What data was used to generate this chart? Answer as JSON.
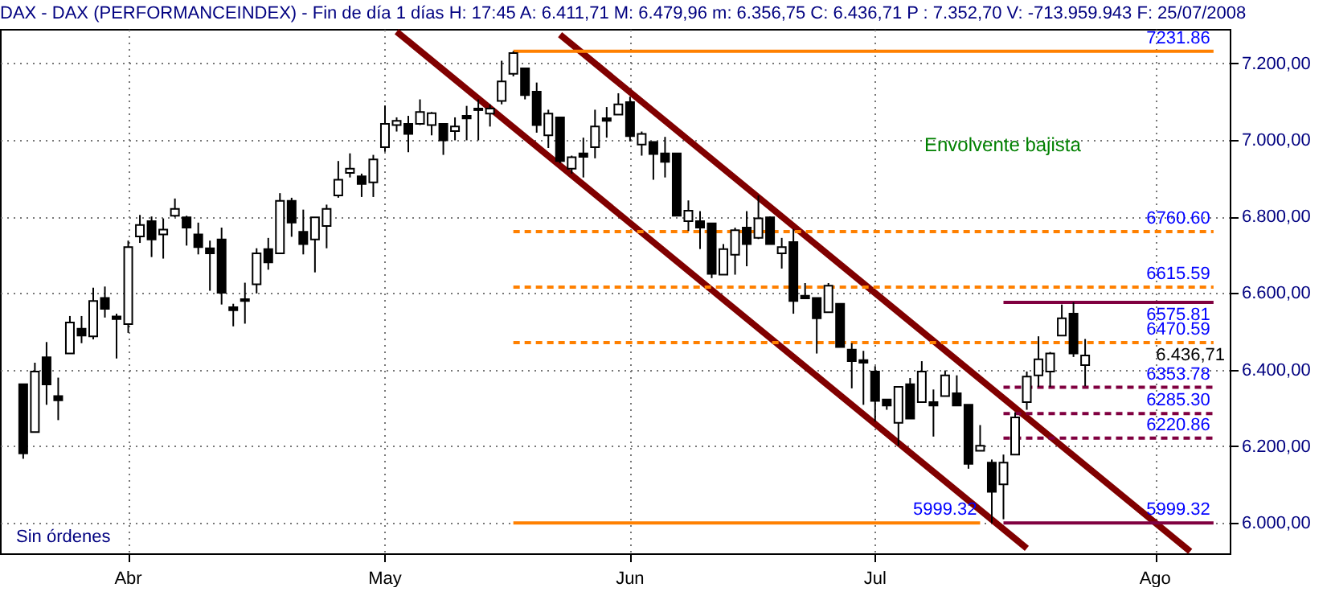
{
  "chart_data": {
    "type": "candlestick",
    "title": "DAX - DAX (PERFORMANCEINDEX) - Fin de día 1 días H: 17:45 A: 6.411,71 M: 6.479,96 m: 6.356,75 C: 6.436,71 P : 7.352,70 V: -713.959.943 F: 25/07/2008",
    "categories": [
      null,
      null,
      null,
      null,
      null,
      null,
      null,
      null,
      null,
      "Abr",
      null,
      null,
      null,
      null,
      null,
      null,
      null,
      null,
      null,
      null,
      null,
      null,
      null,
      null,
      null,
      null,
      null,
      null,
      null,
      null,
      null,
      "May",
      null,
      null,
      null,
      null,
      null,
      null,
      null,
      null,
      null,
      null,
      null,
      null,
      null,
      null,
      null,
      null,
      null,
      null,
      null,
      null,
      "Jun",
      null,
      null,
      null,
      null,
      null,
      null,
      null,
      null,
      null,
      null,
      null,
      null,
      null,
      null,
      null,
      null,
      null,
      null,
      null,
      null,
      "Jul",
      null,
      null,
      null,
      null,
      null,
      null,
      null,
      null,
      null,
      null,
      null,
      null,
      null,
      null,
      null,
      null,
      null,
      null,
      null,
      null,
      null,
      null,
      null,
      "Ago",
      null,
      null,
      null,
      null,
      null
    ],
    "ohlc": [
      [
        6362,
        6362,
        6167,
        6181
      ],
      [
        6237,
        6418,
        6237,
        6395
      ],
      [
        6432,
        6472,
        6308,
        6361
      ],
      [
        6331,
        6379,
        6268,
        6320
      ],
      [
        6442,
        6540,
        6442,
        6523
      ],
      [
        6507,
        6540,
        6469,
        6489
      ],
      [
        6487,
        6614,
        6479,
        6579
      ],
      [
        6587,
        6617,
        6536,
        6559
      ],
      [
        6539,
        6546,
        6429,
        6532
      ],
      [
        6519,
        6737,
        6496,
        6720
      ],
      [
        6748,
        6804,
        6731,
        6778
      ],
      [
        6788,
        6800,
        6694,
        6740
      ],
      [
        6753,
        6795,
        6690,
        6766
      ],
      [
        6802,
        6847,
        6798,
        6820
      ],
      [
        6798,
        6802,
        6724,
        6771
      ],
      [
        6753,
        6784,
        6701,
        6720
      ],
      [
        6717,
        6737,
        6606,
        6704
      ],
      [
        6740,
        6771,
        6570,
        6601
      ],
      [
        6563,
        6572,
        6513,
        6555
      ],
      [
        6584,
        6627,
        6520,
        6579
      ],
      [
        6623,
        6717,
        6599,
        6704
      ],
      [
        6715,
        6744,
        6661,
        6680
      ],
      [
        6704,
        6861,
        6704,
        6841
      ],
      [
        6841,
        6849,
        6747,
        6784
      ],
      [
        6760,
        6818,
        6701,
        6728
      ],
      [
        6740,
        6798,
        6654,
        6798
      ],
      [
        6775,
        6831,
        6717,
        6820
      ],
      [
        6855,
        6945,
        6849,
        6896
      ],
      [
        6914,
        6965,
        6902,
        6925
      ],
      [
        6905,
        6912,
        6851,
        6885
      ],
      [
        6889,
        6961,
        6851,
        6949
      ],
      [
        6981,
        7090,
        6969,
        7042
      ],
      [
        7039,
        7059,
        7022,
        7050
      ],
      [
        7042,
        7063,
        6968,
        7016
      ],
      [
        7042,
        7106,
        7039,
        7073
      ],
      [
        7039,
        7073,
        7012,
        7070
      ],
      [
        7042,
        7042,
        6961,
        6999
      ],
      [
        7023,
        7059,
        6999,
        7035
      ],
      [
        7063,
        7089,
        6999,
        7056
      ],
      [
        7082,
        7106,
        6999,
        7078
      ],
      [
        7069,
        7093,
        7035,
        7082
      ],
      [
        7102,
        7207,
        7093,
        7153
      ],
      [
        7173,
        7231.86,
        7166,
        7227
      ],
      [
        7187,
        7187,
        7106,
        7117
      ],
      [
        7126,
        7150,
        7019,
        7039
      ],
      [
        7012,
        7079,
        6979,
        7069
      ],
      [
        7059,
        7059,
        6939,
        6945
      ],
      [
        6925,
        6959,
        6912,
        6955
      ],
      [
        6965,
        7006,
        6902,
        6956
      ],
      [
        6981,
        7079,
        6952,
        7035
      ],
      [
        7057,
        7086,
        7006,
        7050
      ],
      [
        7066,
        7122,
        7066,
        7093
      ],
      [
        7099,
        7113,
        6996,
        7010
      ],
      [
        6988,
        7022,
        6959,
        7016
      ],
      [
        6995,
        6995,
        6896,
        6963
      ],
      [
        6965,
        7008,
        6902,
        6943
      ],
      [
        6965,
        6965,
        6802,
        6802
      ],
      [
        6788,
        6842,
        6762,
        6815
      ],
      [
        6788,
        6814,
        6715,
        6771
      ],
      [
        6782,
        6782,
        6639,
        6650
      ],
      [
        6648,
        6728,
        6648,
        6715
      ],
      [
        6700,
        6771,
        6648,
        6764
      ],
      [
        6771,
        6814,
        6670,
        6728
      ],
      [
        6744,
        6855,
        6741,
        6795
      ],
      [
        6798,
        6800,
        6728,
        6728
      ],
      [
        6704,
        6744,
        6664,
        6720
      ],
      [
        6733,
        6767,
        6546,
        6579
      ],
      [
        6593,
        6626,
        6586,
        6586
      ],
      [
        6587,
        6587,
        6442,
        6534
      ],
      [
        6550,
        6626,
        6550,
        6619
      ],
      [
        6572,
        6572,
        6459,
        6459
      ],
      [
        6452,
        6469,
        6351,
        6422
      ],
      [
        6425,
        6449,
        6308,
        6418
      ],
      [
        6395,
        6409,
        6264,
        6318
      ],
      [
        6322,
        6322,
        6295,
        6306
      ],
      [
        6261,
        6355,
        6201,
        6355
      ],
      [
        6362,
        6378,
        6272,
        6272
      ],
      [
        6315,
        6422,
        6315,
        6395
      ],
      [
        6315,
        6348,
        6225,
        6306
      ],
      [
        6331,
        6398,
        6331,
        6385
      ],
      [
        6338,
        6385,
        6306,
        6306
      ],
      [
        6308,
        6308,
        6141,
        6154
      ],
      [
        6188,
        6255,
        6188,
        6201
      ],
      [
        6157,
        6165,
        5999.32,
        6081
      ],
      [
        6100,
        6178,
        6009,
        6157
      ],
      [
        6178,
        6288,
        6178,
        6275
      ],
      [
        6315,
        6395,
        6295,
        6382
      ],
      [
        6385,
        6487,
        6355,
        6427
      ],
      [
        6395,
        6446,
        6355,
        6442
      ],
      [
        6489,
        6570,
        6489,
        6534
      ],
      [
        6546,
        6575.81,
        6433,
        6442
      ],
      [
        6411.71,
        6479.96,
        6356.75,
        6436.71
      ],
      null,
      null,
      null,
      null,
      null,
      null,
      null,
      null,
      null,
      null,
      null
    ],
    "series": [
      {
        "type": "line",
        "color": "#800000",
        "line_style": "solid",
        "values": [
          null,
          null,
          null,
          null,
          null,
          null,
          null,
          null,
          null,
          null,
          null,
          null,
          null,
          null,
          null,
          null,
          null,
          null,
          null,
          null,
          null,
          null,
          null,
          null,
          null,
          null,
          null,
          null,
          null,
          null,
          null,
          null,
          7283,
          null,
          null,
          null,
          null,
          null,
          null,
          null,
          null,
          null,
          null,
          null,
          null,
          null,
          null,
          null,
          null,
          null,
          null,
          null,
          null,
          null,
          null,
          null,
          null,
          null,
          null,
          null,
          null,
          null,
          null,
          null,
          null,
          null,
          null,
          null,
          null,
          null,
          null,
          null,
          null,
          null,
          null,
          null,
          null,
          null,
          null,
          null,
          null,
          null,
          null,
          null,
          null,
          null,
          5933,
          null,
          null,
          null,
          null,
          null,
          null,
          null,
          null,
          null,
          null,
          null,
          null,
          null,
          null,
          null,
          null
        ]
      },
      {
        "type": "line",
        "color": "#800000",
        "line_style": "solid",
        "values": [
          null,
          null,
          null,
          null,
          null,
          null,
          null,
          null,
          null,
          null,
          null,
          null,
          null,
          null,
          null,
          null,
          null,
          null,
          null,
          null,
          null,
          null,
          null,
          null,
          null,
          null,
          null,
          null,
          null,
          null,
          null,
          null,
          null,
          null,
          null,
          null,
          null,
          null,
          null,
          null,
          null,
          null,
          null,
          null,
          null,
          null,
          7275,
          null,
          null,
          null,
          null,
          null,
          null,
          null,
          null,
          null,
          null,
          null,
          null,
          null,
          null,
          null,
          null,
          null,
          null,
          null,
          null,
          null,
          null,
          null,
          null,
          null,
          null,
          null,
          null,
          null,
          null,
          null,
          null,
          null,
          null,
          null,
          null,
          null,
          null,
          null,
          null,
          null,
          null,
          null,
          null,
          null,
          null,
          null,
          null,
          null,
          null,
          null,
          null,
          null,
          5925,
          null,
          null
        ]
      },
      {
        "type": "line",
        "name": "7231.86",
        "color": "#ff8000",
        "line_style": "solid",
        "values": [
          null,
          null,
          null,
          null,
          null,
          null,
          null,
          null,
          null,
          null,
          null,
          null,
          null,
          null,
          null,
          null,
          null,
          null,
          null,
          null,
          null,
          null,
          null,
          null,
          null,
          null,
          null,
          null,
          null,
          null,
          null,
          null,
          null,
          null,
          null,
          null,
          null,
          null,
          null,
          null,
          null,
          null,
          7231.86,
          null,
          null,
          null,
          null,
          null,
          null,
          null,
          null,
          null,
          null,
          null,
          null,
          null,
          null,
          null,
          null,
          null,
          null,
          null,
          null,
          null,
          null,
          null,
          null,
          null,
          null,
          null,
          null,
          null,
          null,
          null,
          null,
          null,
          null,
          null,
          null,
          null,
          null,
          null,
          null,
          null,
          null,
          null,
          null,
          null,
          null,
          null,
          null,
          null,
          null,
          null,
          null,
          null,
          null,
          null,
          null,
          null,
          null,
          null,
          7231.86
        ]
      },
      {
        "type": "line",
        "name": "6760.60",
        "color": "#ff8000",
        "line_style": "dashed",
        "values": [
          null,
          null,
          null,
          null,
          null,
          null,
          null,
          null,
          null,
          null,
          null,
          null,
          null,
          null,
          null,
          null,
          null,
          null,
          null,
          null,
          null,
          null,
          null,
          null,
          null,
          null,
          null,
          null,
          null,
          null,
          null,
          null,
          null,
          null,
          null,
          null,
          null,
          null,
          null,
          null,
          null,
          null,
          6760.6,
          null,
          null,
          null,
          null,
          null,
          null,
          null,
          null,
          null,
          null,
          null,
          null,
          null,
          null,
          null,
          null,
          null,
          null,
          null,
          null,
          null,
          null,
          null,
          null,
          null,
          null,
          null,
          null,
          null,
          null,
          null,
          null,
          null,
          null,
          null,
          null,
          null,
          null,
          null,
          null,
          null,
          null,
          null,
          null,
          null,
          null,
          null,
          null,
          null,
          null,
          null,
          null,
          null,
          null,
          null,
          null,
          null,
          null,
          null,
          6760.6
        ]
      },
      {
        "type": "line",
        "name": "6615.59",
        "color": "#ff8000",
        "line_style": "dashed",
        "values": [
          null,
          null,
          null,
          null,
          null,
          null,
          null,
          null,
          null,
          null,
          null,
          null,
          null,
          null,
          null,
          null,
          null,
          null,
          null,
          null,
          null,
          null,
          null,
          null,
          null,
          null,
          null,
          null,
          null,
          null,
          null,
          null,
          null,
          null,
          null,
          null,
          null,
          null,
          null,
          null,
          null,
          null,
          6615.59,
          null,
          null,
          null,
          null,
          null,
          null,
          null,
          null,
          null,
          null,
          null,
          null,
          null,
          null,
          null,
          null,
          null,
          null,
          null,
          null,
          null,
          null,
          null,
          null,
          null,
          null,
          null,
          null,
          null,
          null,
          null,
          null,
          null,
          null,
          null,
          null,
          null,
          null,
          null,
          null,
          null,
          null,
          null,
          null,
          null,
          null,
          null,
          null,
          null,
          null,
          null,
          null,
          null,
          null,
          null,
          null,
          null,
          null,
          null,
          6615.59
        ]
      },
      {
        "type": "line",
        "name": "6470.59",
        "color": "#ff8000",
        "line_style": "dashed",
        "values": [
          null,
          null,
          null,
          null,
          null,
          null,
          null,
          null,
          null,
          null,
          null,
          null,
          null,
          null,
          null,
          null,
          null,
          null,
          null,
          null,
          null,
          null,
          null,
          null,
          null,
          null,
          null,
          null,
          null,
          null,
          null,
          null,
          null,
          null,
          null,
          null,
          null,
          null,
          null,
          null,
          null,
          null,
          6470.59,
          null,
          null,
          null,
          null,
          null,
          null,
          null,
          null,
          null,
          null,
          null,
          null,
          null,
          null,
          null,
          null,
          null,
          null,
          null,
          null,
          null,
          null,
          null,
          null,
          null,
          null,
          null,
          null,
          null,
          null,
          null,
          null,
          null,
          null,
          null,
          null,
          null,
          null,
          null,
          null,
          null,
          null,
          null,
          null,
          null,
          null,
          null,
          null,
          null,
          null,
          null,
          null,
          null,
          null,
          null,
          null,
          null,
          null,
          null,
          6470.59
        ]
      },
      {
        "type": "line",
        "name": "5999.32",
        "color": "#ff8000",
        "line_style": "solid",
        "values": [
          null,
          null,
          null,
          null,
          null,
          null,
          null,
          null,
          null,
          null,
          null,
          null,
          null,
          null,
          null,
          null,
          null,
          null,
          null,
          null,
          null,
          null,
          null,
          null,
          null,
          null,
          null,
          null,
          null,
          null,
          null,
          null,
          null,
          null,
          null,
          null,
          null,
          null,
          null,
          null,
          null,
          null,
          5999.32,
          null,
          null,
          null,
          null,
          null,
          null,
          null,
          null,
          null,
          null,
          null,
          null,
          null,
          null,
          null,
          null,
          null,
          null,
          null,
          null,
          null,
          null,
          null,
          null,
          null,
          null,
          null,
          null,
          null,
          null,
          null,
          null,
          null,
          null,
          null,
          null,
          null,
          null,
          null,
          5999.32,
          null,
          null,
          null,
          null,
          null,
          null,
          null,
          null,
          null,
          null,
          null,
          null,
          null,
          null,
          null,
          null,
          null,
          null,
          null,
          null
        ]
      },
      {
        "type": "line",
        "name": "6575.81",
        "color": "#800040",
        "line_style": "solid",
        "values": [
          null,
          null,
          null,
          null,
          null,
          null,
          null,
          null,
          null,
          null,
          null,
          null,
          null,
          null,
          null,
          null,
          null,
          null,
          null,
          null,
          null,
          null,
          null,
          null,
          null,
          null,
          null,
          null,
          null,
          null,
          null,
          null,
          null,
          null,
          null,
          null,
          null,
          null,
          null,
          null,
          null,
          null,
          null,
          null,
          null,
          null,
          null,
          null,
          null,
          null,
          null,
          null,
          null,
          null,
          null,
          null,
          null,
          null,
          null,
          null,
          null,
          null,
          null,
          null,
          null,
          null,
          null,
          null,
          null,
          null,
          null,
          null,
          null,
          null,
          null,
          null,
          null,
          null,
          null,
          null,
          null,
          null,
          null,
          null,
          6575.81,
          null,
          null,
          null,
          null,
          null,
          null,
          null,
          null,
          null,
          null,
          null,
          null,
          null,
          null,
          null,
          null,
          null,
          6575.81
        ]
      },
      {
        "type": "line",
        "name": "6353.78",
        "color": "#800040",
        "line_style": "dashed",
        "values": [
          null,
          null,
          null,
          null,
          null,
          null,
          null,
          null,
          null,
          null,
          null,
          null,
          null,
          null,
          null,
          null,
          null,
          null,
          null,
          null,
          null,
          null,
          null,
          null,
          null,
          null,
          null,
          null,
          null,
          null,
          null,
          null,
          null,
          null,
          null,
          null,
          null,
          null,
          null,
          null,
          null,
          null,
          null,
          null,
          null,
          null,
          null,
          null,
          null,
          null,
          null,
          null,
          null,
          null,
          null,
          null,
          null,
          null,
          null,
          null,
          null,
          null,
          null,
          null,
          null,
          null,
          null,
          null,
          null,
          null,
          null,
          null,
          null,
          null,
          null,
          null,
          null,
          null,
          null,
          null,
          null,
          null,
          null,
          null,
          6353.78,
          null,
          null,
          null,
          null,
          null,
          null,
          null,
          null,
          null,
          null,
          null,
          null,
          null,
          null,
          null,
          null,
          null,
          6353.78
        ]
      },
      {
        "type": "line",
        "name": "6285.30",
        "color": "#800040",
        "line_style": "dashed",
        "values": [
          null,
          null,
          null,
          null,
          null,
          null,
          null,
          null,
          null,
          null,
          null,
          null,
          null,
          null,
          null,
          null,
          null,
          null,
          null,
          null,
          null,
          null,
          null,
          null,
          null,
          null,
          null,
          null,
          null,
          null,
          null,
          null,
          null,
          null,
          null,
          null,
          null,
          null,
          null,
          null,
          null,
          null,
          null,
          null,
          null,
          null,
          null,
          null,
          null,
          null,
          null,
          null,
          null,
          null,
          null,
          null,
          null,
          null,
          null,
          null,
          null,
          null,
          null,
          null,
          null,
          null,
          null,
          null,
          null,
          null,
          null,
          null,
          null,
          null,
          null,
          null,
          null,
          null,
          null,
          null,
          null,
          null,
          null,
          null,
          6285.3,
          null,
          null,
          null,
          null,
          null,
          null,
          null,
          null,
          null,
          null,
          null,
          null,
          null,
          null,
          null,
          null,
          null,
          6285.3
        ]
      },
      {
        "type": "line",
        "name": "6220.86",
        "color": "#800040",
        "line_style": "dashed",
        "values": [
          null,
          null,
          null,
          null,
          null,
          null,
          null,
          null,
          null,
          null,
          null,
          null,
          null,
          null,
          null,
          null,
          null,
          null,
          null,
          null,
          null,
          null,
          null,
          null,
          null,
          null,
          null,
          null,
          null,
          null,
          null,
          null,
          null,
          null,
          null,
          null,
          null,
          null,
          null,
          null,
          null,
          null,
          null,
          null,
          null,
          null,
          null,
          null,
          null,
          null,
          null,
          null,
          null,
          null,
          null,
          null,
          null,
          null,
          null,
          null,
          null,
          null,
          null,
          null,
          null,
          null,
          null,
          null,
          null,
          null,
          null,
          null,
          null,
          null,
          null,
          null,
          null,
          null,
          null,
          null,
          null,
          null,
          null,
          null,
          6220.86,
          null,
          null,
          null,
          null,
          null,
          null,
          null,
          null,
          null,
          null,
          null,
          null,
          null,
          null,
          null,
          null,
          null,
          6220.86
        ]
      },
      {
        "type": "line",
        "name": "5999.32",
        "color": "#800040",
        "line_style": "solid",
        "values": [
          null,
          null,
          null,
          null,
          null,
          null,
          null,
          null,
          null,
          null,
          null,
          null,
          null,
          null,
          null,
          null,
          null,
          null,
          null,
          null,
          null,
          null,
          null,
          null,
          null,
          null,
          null,
          null,
          null,
          null,
          null,
          null,
          null,
          null,
          null,
          null,
          null,
          null,
          null,
          null,
          null,
          null,
          null,
          null,
          null,
          null,
          null,
          null,
          null,
          null,
          null,
          null,
          null,
          null,
          null,
          null,
          null,
          null,
          null,
          null,
          null,
          null,
          null,
          null,
          null,
          null,
          null,
          null,
          null,
          null,
          null,
          null,
          null,
          null,
          null,
          null,
          null,
          null,
          null,
          null,
          null,
          null,
          null,
          null,
          5999.32,
          null,
          null,
          null,
          null,
          null,
          null,
          null,
          null,
          null,
          null,
          null,
          null,
          null,
          null,
          null,
          null,
          null,
          5999.32
        ]
      }
    ],
    "ylim": [
      5920,
      7290
    ],
    "yticks": [
      {
        "value": 6000,
        "label": "6.000,00"
      },
      {
        "value": 6200,
        "label": "6.200,00"
      },
      {
        "value": 6400,
        "label": "6.400,00"
      },
      {
        "value": 6600,
        "label": "6.600,00"
      },
      {
        "value": 6800,
        "label": "6.800,00"
      },
      {
        "value": 7000,
        "label": "7.000,00"
      },
      {
        "value": 7200,
        "label": "7.200,00"
      }
    ],
    "grid": true,
    "annotations": [
      "Envolvente bajista",
      "Sin órdenes",
      "6.436,71"
    ]
  }
}
